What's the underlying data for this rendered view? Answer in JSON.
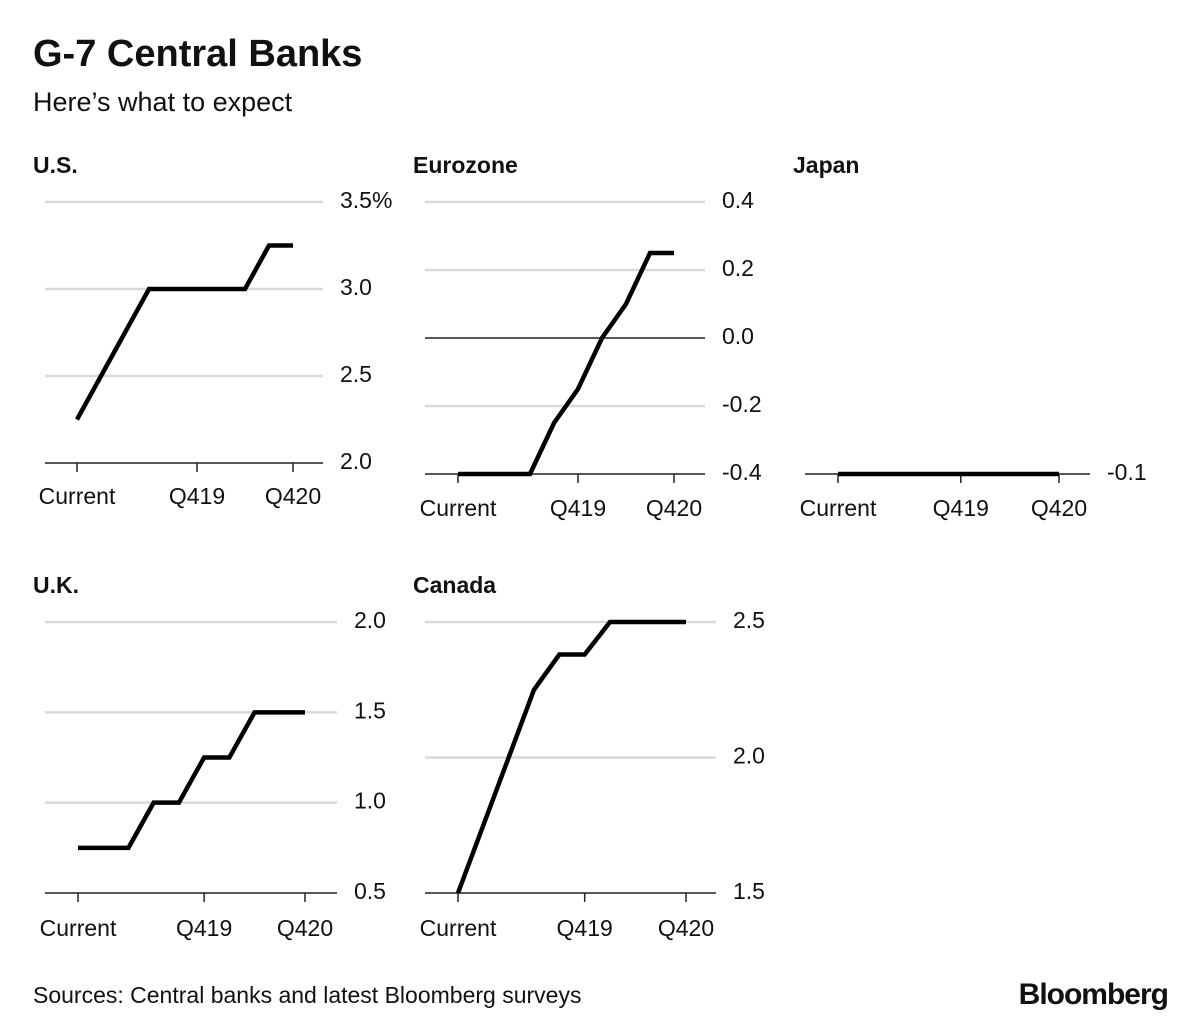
{
  "title": "G-7 Central Banks",
  "subtitle": "Here’s what to expect",
  "source": "Sources: Central banks and latest Bloomberg surveys",
  "brand": "Bloomberg",
  "chart_data": [
    {
      "type": "line",
      "title": "U.S.",
      "color": "#000000",
      "grid": true,
      "categories": [
        "Current",
        null,
        null,
        null,
        null,
        "Q419",
        null,
        null,
        null,
        "Q420"
      ],
      "values": [
        2.25,
        2.5,
        2.75,
        3.0,
        3.0,
        3.0,
        3.0,
        3.0,
        3.25,
        3.25
      ],
      "ylim": [
        2.0,
        3.5
      ],
      "yticks": [
        {
          "value": 3.5,
          "label": "3.5%"
        },
        {
          "value": 3,
          "label": "3.0"
        },
        2.5,
        {
          "value": 2,
          "label": "2.0"
        }
      ]
    },
    {
      "type": "line",
      "title": "Eurozone",
      "color": "#000000",
      "grid": true,
      "categories": [
        "Current",
        null,
        null,
        null,
        null,
        "Q419",
        null,
        null,
        null,
        "Q420"
      ],
      "values": [
        -0.4,
        -0.4,
        -0.4,
        -0.4,
        -0.25,
        -0.15,
        0.0,
        0.1,
        0.25,
        0.25
      ],
      "ylim": [
        -0.4,
        0.4
      ],
      "yticks": [
        0.4,
        0.2,
        {
          "value": 0,
          "label": "0.0"
        },
        -0.2,
        -0.4
      ]
    },
    {
      "type": "line",
      "title": "Japan",
      "color": "#000000",
      "grid": true,
      "categories": [
        "Current",
        null,
        null,
        null,
        null,
        "Q419",
        null,
        null,
        null,
        "Q420"
      ],
      "values": [
        -0.1,
        -0.1,
        -0.1,
        -0.1,
        -0.1,
        -0.1,
        -0.1,
        -0.1,
        -0.1,
        -0.1
      ],
      "ylim": [
        -0.1,
        0.7
      ],
      "yticks": [
        -0.1
      ]
    },
    {
      "type": "line",
      "title": "U.K.",
      "color": "#000000",
      "grid": true,
      "categories": [
        "Current",
        null,
        null,
        null,
        null,
        "Q419",
        null,
        null,
        null,
        "Q420"
      ],
      "values": [
        0.75,
        0.75,
        0.75,
        1.0,
        1.0,
        1.25,
        1.25,
        1.5,
        1.5,
        1.5
      ],
      "ylim": [
        0.5,
        2.0
      ],
      "yticks": [
        {
          "value": 2,
          "label": "2.0"
        },
        1.5,
        {
          "value": 1,
          "label": "1.0"
        },
        0.5
      ]
    },
    {
      "type": "line",
      "title": "Canada",
      "color": "#000000",
      "grid": true,
      "categories": [
        "Current",
        null,
        null,
        null,
        null,
        "Q419",
        null,
        null,
        null,
        "Q420"
      ],
      "values": [
        1.5,
        1.75,
        2.0,
        2.25,
        2.38,
        2.38,
        2.5,
        2.5,
        2.5,
        2.5
      ],
      "ylim": [
        1.5,
        2.5
      ],
      "yticks": [
        2.5,
        {
          "value": 2,
          "label": "2.0"
        },
        1.5
      ]
    }
  ]
}
